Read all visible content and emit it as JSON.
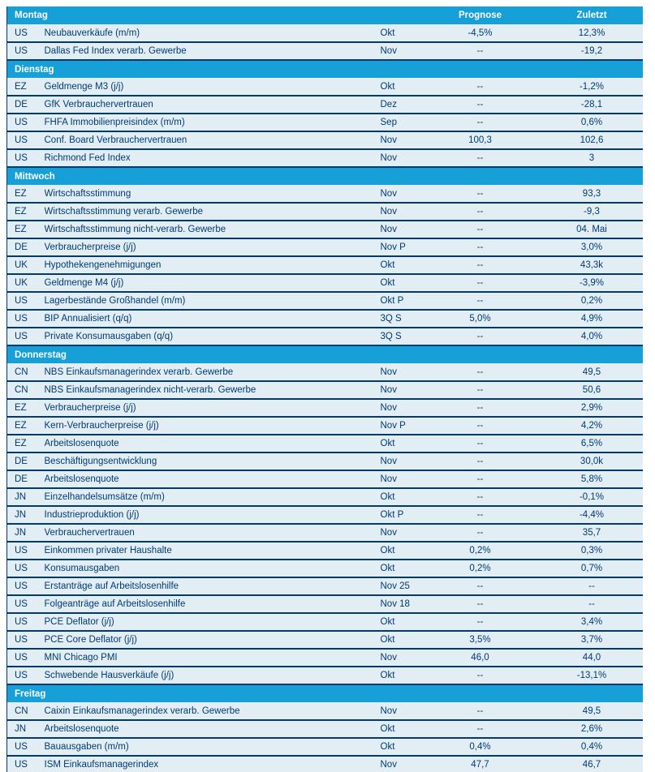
{
  "colors": {
    "band_bg": "#17a0d8",
    "row_bg": "#e2eef4",
    "ink": "#003a75",
    "band_text": "#ffffff"
  },
  "table": {
    "columns": {
      "prognose": "Prognose",
      "zuletzt": "Zuletzt"
    },
    "days": [
      {
        "label": "Montag",
        "show_column_headers": true,
        "rows": [
          {
            "country": "US",
            "name": "Neubauverkäufe (m/m)",
            "period": "Okt",
            "prognose": "-4,5%",
            "zuletzt": "12,3%"
          },
          {
            "country": "US",
            "name": "Dallas Fed Index verarb. Gewerbe",
            "period": "Nov",
            "prognose": "--",
            "zuletzt": "-19,2"
          }
        ]
      },
      {
        "label": "Dienstag",
        "show_column_headers": false,
        "rows": [
          {
            "country": "EZ",
            "name": "Geldmenge M3 (j/j)",
            "period": "Okt",
            "prognose": "--",
            "zuletzt": "-1,2%"
          },
          {
            "country": "DE",
            "name": "GfK Verbrauchervertrauen",
            "period": "Dez",
            "prognose": "--",
            "zuletzt": "-28,1"
          },
          {
            "country": "US",
            "name": "FHFA Immobilienpreisindex (m/m)",
            "period": "Sep",
            "prognose": "--",
            "zuletzt": "0,6%"
          },
          {
            "country": "US",
            "name": "Conf. Board Verbrauchervertrauen",
            "period": "Nov",
            "prognose": "100,3",
            "zuletzt": "102,6"
          },
          {
            "country": "US",
            "name": "Richmond Fed Index",
            "period": "Nov",
            "prognose": "--",
            "zuletzt": "3"
          }
        ]
      },
      {
        "label": "Mittwoch",
        "show_column_headers": false,
        "rows": [
          {
            "country": "EZ",
            "name": "Wirtschaftsstimmung",
            "period": "Nov",
            "prognose": "--",
            "zuletzt": "93,3"
          },
          {
            "country": "EZ",
            "name": "Wirtschaftsstimmung verarb. Gewerbe",
            "period": "Nov",
            "prognose": "--",
            "zuletzt": "-9,3"
          },
          {
            "country": "EZ",
            "name": "Wirtschaftsstimmung nicht-verarb. Gewerbe",
            "period": "Nov",
            "prognose": "--",
            "zuletzt": "04. Mai"
          },
          {
            "country": "DE",
            "name": "Verbraucherpreise (j/j)",
            "period": "Nov P",
            "prognose": "--",
            "zuletzt": "3,0%"
          },
          {
            "country": "UK",
            "name": "Hypothekengenehmigungen",
            "period": "Okt",
            "prognose": "--",
            "zuletzt": "43,3k"
          },
          {
            "country": "UK",
            "name": "Geldmenge M4 (j/j)",
            "period": "Okt",
            "prognose": "--",
            "zuletzt": "-3,9%"
          },
          {
            "country": "US",
            "name": "Lagerbestände Großhandel (m/m)",
            "period": "Okt P",
            "prognose": "--",
            "zuletzt": "0,2%"
          },
          {
            "country": "US",
            "name": "BIP Annualisiert (q/q)",
            "period": "3Q S",
            "prognose": "5,0%",
            "zuletzt": "4,9%"
          },
          {
            "country": "US",
            "name": "Private Konsumausgaben (q/q)",
            "period": "3Q S",
            "prognose": "--",
            "zuletzt": "4,0%"
          }
        ]
      },
      {
        "label": "Donnerstag",
        "show_column_headers": false,
        "rows": [
          {
            "country": "CN",
            "name": "NBS Einkaufsmanagerindex verarb. Gewerbe",
            "period": "Nov",
            "prognose": "--",
            "zuletzt": "49,5"
          },
          {
            "country": "CN",
            "name": "NBS Einkaufsmanagerindex nicht-verarb. Gewerbe",
            "period": "Nov",
            "prognose": "--",
            "zuletzt": "50,6"
          },
          {
            "country": "EZ",
            "name": "Verbraucherpreise (j/j)",
            "period": "Nov",
            "prognose": "--",
            "zuletzt": "2,9%"
          },
          {
            "country": "EZ",
            "name": "Kern-Verbraucherpreise (j/j)",
            "period": "Nov P",
            "prognose": "--",
            "zuletzt": "4,2%"
          },
          {
            "country": "EZ",
            "name": "Arbeitslosenquote",
            "period": "Okt",
            "prognose": "--",
            "zuletzt": "6,5%"
          },
          {
            "country": "DE",
            "name": "Beschäftigungsentwicklung",
            "period": "Nov",
            "prognose": "--",
            "zuletzt": "30,0k"
          },
          {
            "country": "DE",
            "name": "Arbeitslosenquote",
            "period": "Nov",
            "prognose": "--",
            "zuletzt": "5,8%"
          },
          {
            "country": "JN",
            "name": "Einzelhandelsumsätze (m/m)",
            "period": "Okt",
            "prognose": "--",
            "zuletzt": "-0,1%"
          },
          {
            "country": "JN",
            "name": "Industrieproduktion (j/j)",
            "period": "Okt P",
            "prognose": "--",
            "zuletzt": "-4,4%"
          },
          {
            "country": "JN",
            "name": "Verbrauchervertrauen",
            "period": "Nov",
            "prognose": "--",
            "zuletzt": "35,7"
          },
          {
            "country": "US",
            "name": "Einkommen privater Haushalte",
            "period": "Okt",
            "prognose": "0,2%",
            "zuletzt": "0,3%"
          },
          {
            "country": "US",
            "name": "Konsumausgaben",
            "period": "Okt",
            "prognose": "0,2%",
            "zuletzt": "0,7%"
          },
          {
            "country": "US",
            "name": "Erstanträge auf Arbeitslosenhilfe",
            "period": "Nov 25",
            "prognose": "--",
            "zuletzt": "--"
          },
          {
            "country": "US",
            "name": "Folgeanträge auf Arbeitslosenhilfe",
            "period": "Nov 18",
            "prognose": "--",
            "zuletzt": "--"
          },
          {
            "country": "US",
            "name": "PCE Deflator (j/j)",
            "period": "Okt",
            "prognose": "--",
            "zuletzt": "3,4%"
          },
          {
            "country": "US",
            "name": "PCE Core Deflator (j/j)",
            "period": "Okt",
            "prognose": "3,5%",
            "zuletzt": "3,7%"
          },
          {
            "country": "US",
            "name": "MNI Chicago PMI",
            "period": "Nov",
            "prognose": "46,0",
            "zuletzt": "44,0"
          },
          {
            "country": "US",
            "name": "Schwebende Hausverkäufe (j/j)",
            "period": "Okt",
            "prognose": "--",
            "zuletzt": "-13,1%"
          }
        ]
      },
      {
        "label": "Freitag",
        "show_column_headers": false,
        "rows": [
          {
            "country": "CN",
            "name": "Caixin Einkaufsmanagerindex verarb. Gewerbe",
            "period": "Nov",
            "prognose": "--",
            "zuletzt": "49,5"
          },
          {
            "country": "JN",
            "name": "Arbeitslosenquote",
            "period": "Okt",
            "prognose": "--",
            "zuletzt": "2,6%"
          },
          {
            "country": "US",
            "name": "Bauausgaben (m/m)",
            "period": "Okt",
            "prognose": "0,4%",
            "zuletzt": "0,4%"
          },
          {
            "country": "US",
            "name": "ISM Einkaufsmanagerindex",
            "period": "Nov",
            "prognose": "47,7",
            "zuletzt": "46,7"
          }
        ]
      }
    ]
  }
}
